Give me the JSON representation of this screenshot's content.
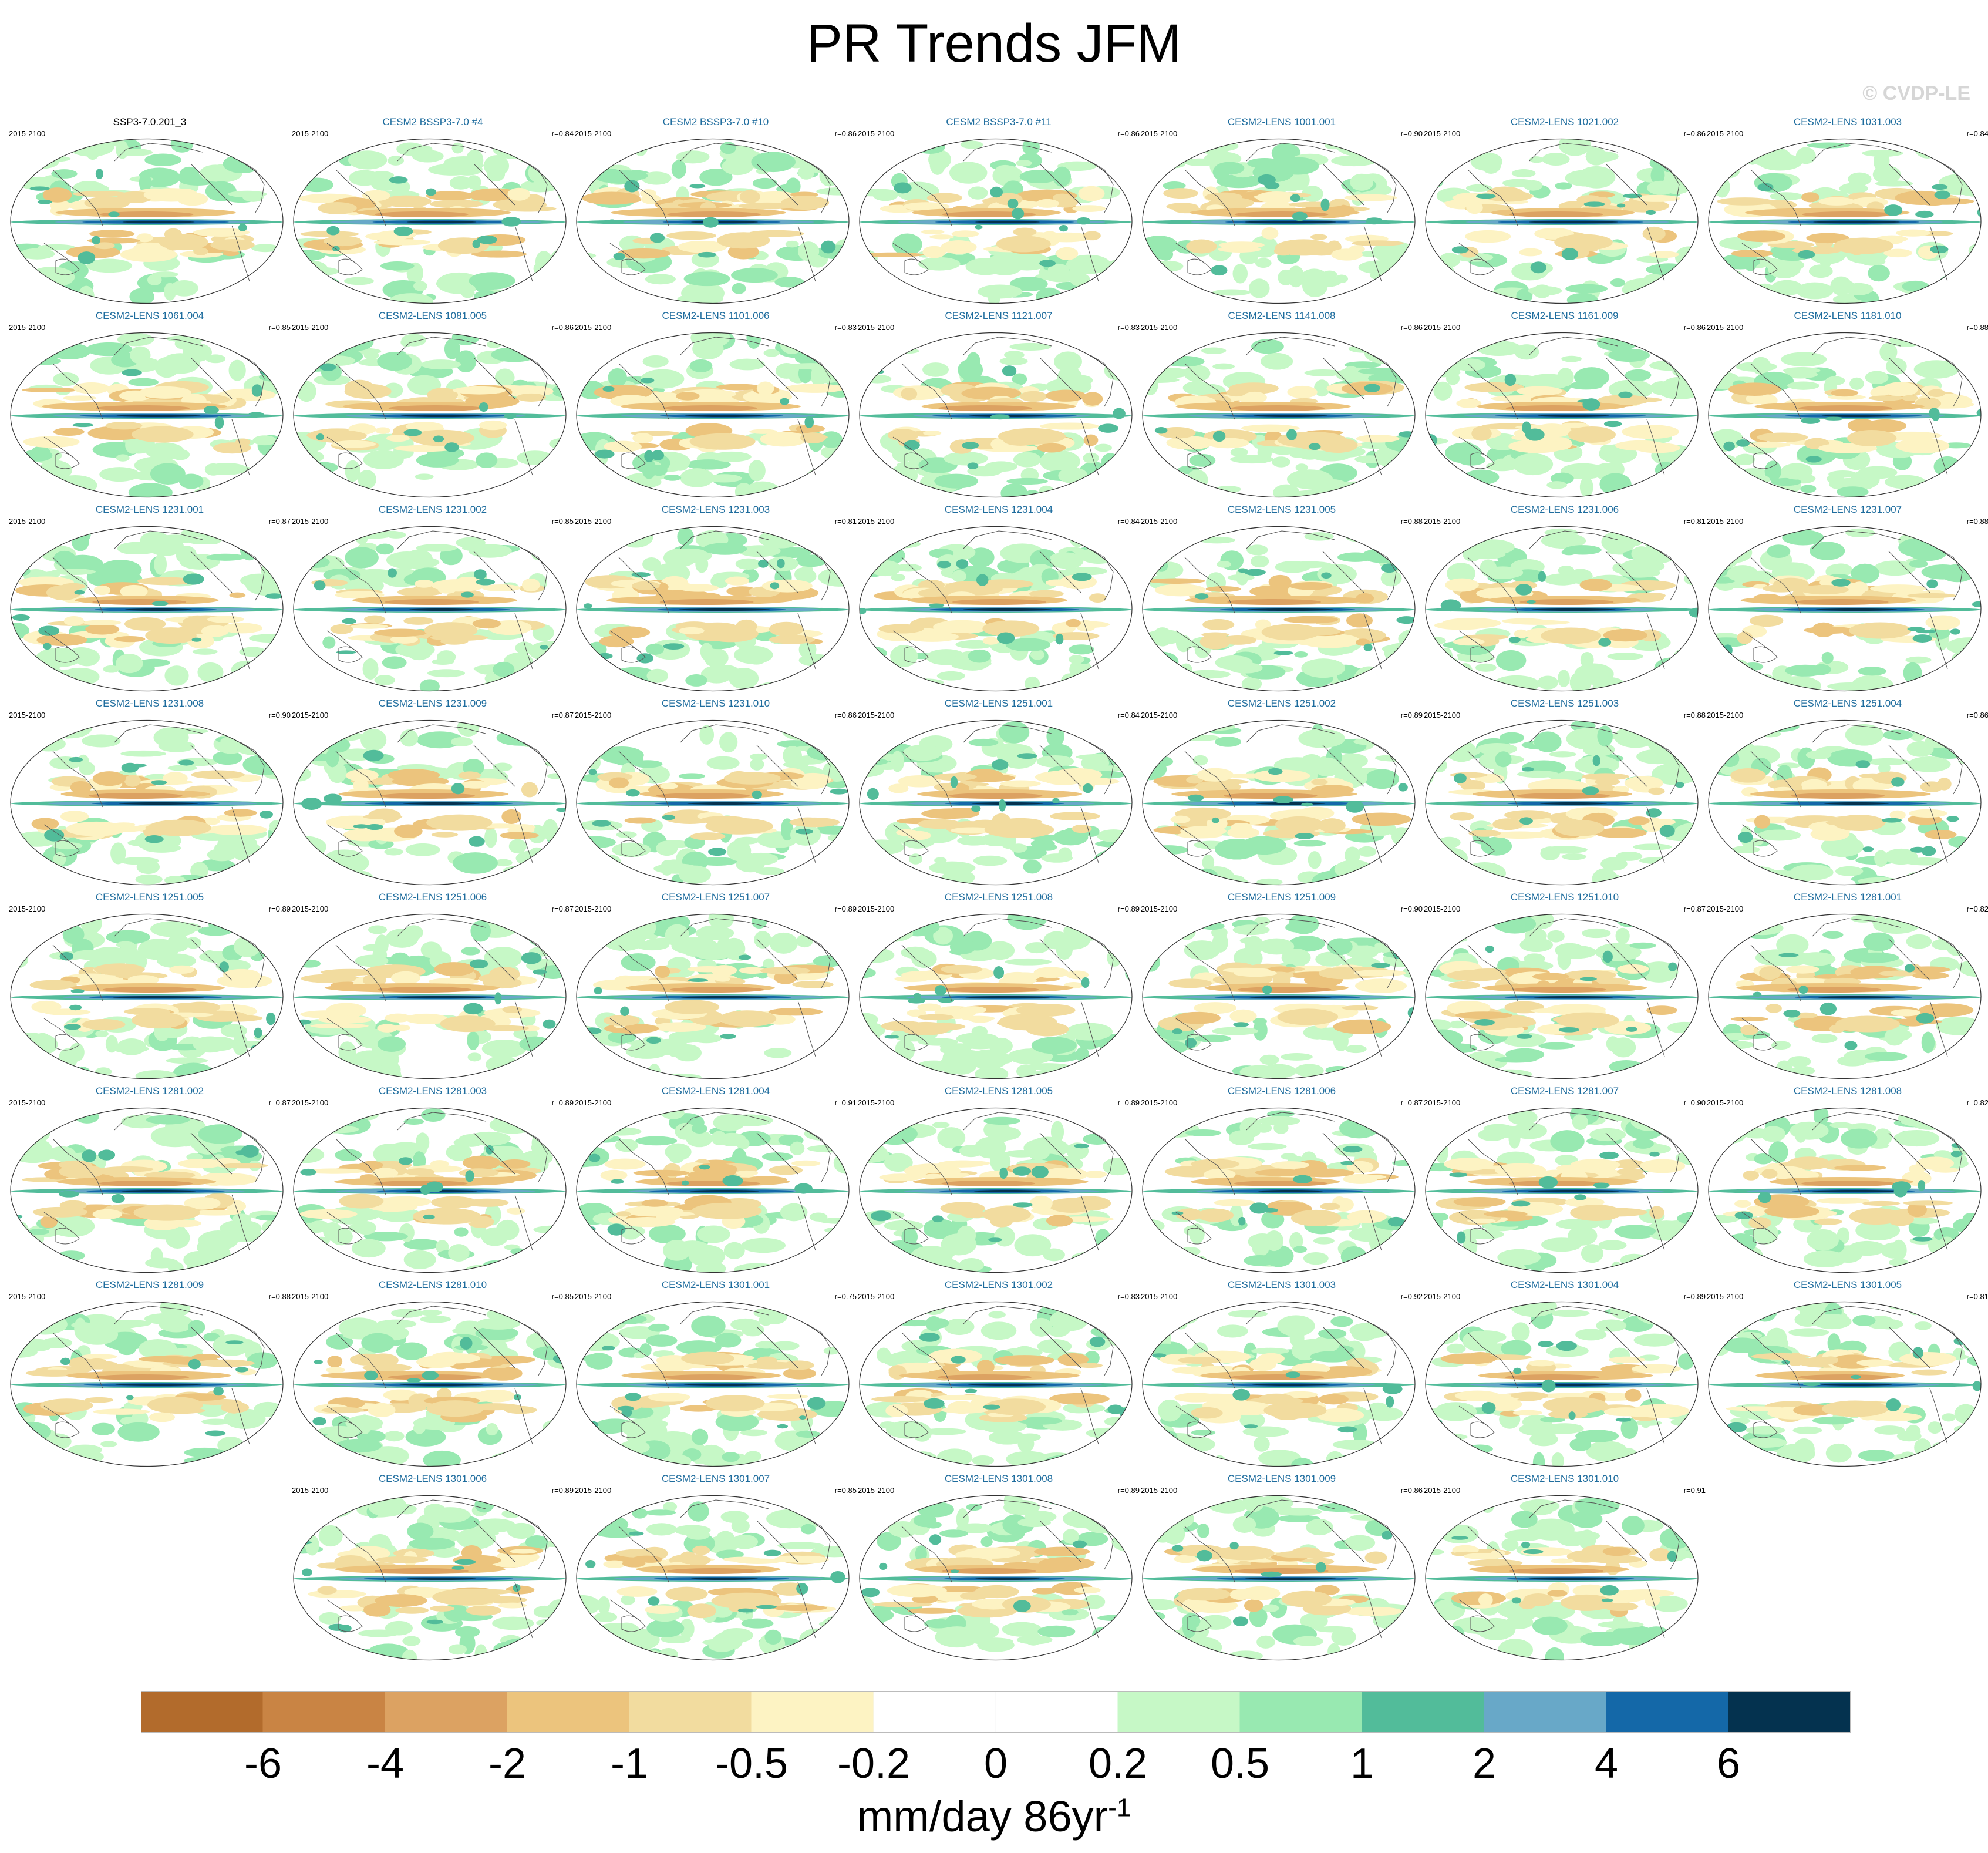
{
  "title": "PR Trends JFM",
  "watermark": "© CVDP-LE",
  "chart_data": {
    "type": "map-panels",
    "season": "JFM",
    "period": "2015-2100",
    "panels": [
      {
        "name": "SSP3-7.0.201_3",
        "period": "2015-2100",
        "r": "",
        "reference": true
      },
      {
        "name": "CESM2 BSSP3-7.0 #4",
        "period": "2015-2100",
        "r": "r=0.84"
      },
      {
        "name": "CESM2 BSSP3-7.0 #10",
        "period": "2015-2100",
        "r": "r=0.86"
      },
      {
        "name": "CESM2 BSSP3-7.0 #11",
        "period": "2015-2100",
        "r": "r=0.86"
      },
      {
        "name": "CESM2-LENS 1001.001",
        "period": "2015-2100",
        "r": "r=0.90"
      },
      {
        "name": "CESM2-LENS 1021.002",
        "period": "2015-2100",
        "r": "r=0.86"
      },
      {
        "name": "CESM2-LENS 1031.003",
        "period": "2015-2100",
        "r": "r=0.84"
      },
      {
        "name": "CESM2-LENS 1061.004",
        "period": "2015-2100",
        "r": "r=0.85"
      },
      {
        "name": "CESM2-LENS 1081.005",
        "period": "2015-2100",
        "r": "r=0.86"
      },
      {
        "name": "CESM2-LENS 1101.006",
        "period": "2015-2100",
        "r": "r=0.83"
      },
      {
        "name": "CESM2-LENS 1121.007",
        "period": "2015-2100",
        "r": "r=0.83"
      },
      {
        "name": "CESM2-LENS 1141.008",
        "period": "2015-2100",
        "r": "r=0.86"
      },
      {
        "name": "CESM2-LENS 1161.009",
        "period": "2015-2100",
        "r": "r=0.86"
      },
      {
        "name": "CESM2-LENS 1181.010",
        "period": "2015-2100",
        "r": "r=0.88"
      },
      {
        "name": "CESM2-LENS 1231.001",
        "period": "2015-2100",
        "r": "r=0.87"
      },
      {
        "name": "CESM2-LENS 1231.002",
        "period": "2015-2100",
        "r": "r=0.85"
      },
      {
        "name": "CESM2-LENS 1231.003",
        "period": "2015-2100",
        "r": "r=0.81"
      },
      {
        "name": "CESM2-LENS 1231.004",
        "period": "2015-2100",
        "r": "r=0.84"
      },
      {
        "name": "CESM2-LENS 1231.005",
        "period": "2015-2100",
        "r": "r=0.88"
      },
      {
        "name": "CESM2-LENS 1231.006",
        "period": "2015-2100",
        "r": "r=0.81"
      },
      {
        "name": "CESM2-LENS 1231.007",
        "period": "2015-2100",
        "r": "r=0.88"
      },
      {
        "name": "CESM2-LENS 1231.008",
        "period": "2015-2100",
        "r": "r=0.90"
      },
      {
        "name": "CESM2-LENS 1231.009",
        "period": "2015-2100",
        "r": "r=0.87"
      },
      {
        "name": "CESM2-LENS 1231.010",
        "period": "2015-2100",
        "r": "r=0.86"
      },
      {
        "name": "CESM2-LENS 1251.001",
        "period": "2015-2100",
        "r": "r=0.84"
      },
      {
        "name": "CESM2-LENS 1251.002",
        "period": "2015-2100",
        "r": "r=0.89"
      },
      {
        "name": "CESM2-LENS 1251.003",
        "period": "2015-2100",
        "r": "r=0.88"
      },
      {
        "name": "CESM2-LENS 1251.004",
        "period": "2015-2100",
        "r": "r=0.86"
      },
      {
        "name": "CESM2-LENS 1251.005",
        "period": "2015-2100",
        "r": "r=0.89"
      },
      {
        "name": "CESM2-LENS 1251.006",
        "period": "2015-2100",
        "r": "r=0.87"
      },
      {
        "name": "CESM2-LENS 1251.007",
        "period": "2015-2100",
        "r": "r=0.89"
      },
      {
        "name": "CESM2-LENS 1251.008",
        "period": "2015-2100",
        "r": "r=0.89"
      },
      {
        "name": "CESM2-LENS 1251.009",
        "period": "2015-2100",
        "r": "r=0.90"
      },
      {
        "name": "CESM2-LENS 1251.010",
        "period": "2015-2100",
        "r": "r=0.87"
      },
      {
        "name": "CESM2-LENS 1281.001",
        "period": "2015-2100",
        "r": "r=0.82"
      },
      {
        "name": "CESM2-LENS 1281.002",
        "period": "2015-2100",
        "r": "r=0.87"
      },
      {
        "name": "CESM2-LENS 1281.003",
        "period": "2015-2100",
        "r": "r=0.89"
      },
      {
        "name": "CESM2-LENS 1281.004",
        "period": "2015-2100",
        "r": "r=0.91"
      },
      {
        "name": "CESM2-LENS 1281.005",
        "period": "2015-2100",
        "r": "r=0.89"
      },
      {
        "name": "CESM2-LENS 1281.006",
        "period": "2015-2100",
        "r": "r=0.87"
      },
      {
        "name": "CESM2-LENS 1281.007",
        "period": "2015-2100",
        "r": "r=0.90"
      },
      {
        "name": "CESM2-LENS 1281.008",
        "period": "2015-2100",
        "r": "r=0.82"
      },
      {
        "name": "CESM2-LENS 1281.009",
        "period": "2015-2100",
        "r": "r=0.88"
      },
      {
        "name": "CESM2-LENS 1281.010",
        "period": "2015-2100",
        "r": "r=0.85"
      },
      {
        "name": "CESM2-LENS 1301.001",
        "period": "2015-2100",
        "r": "r=0.75"
      },
      {
        "name": "CESM2-LENS 1301.002",
        "period": "2015-2100",
        "r": "r=0.83"
      },
      {
        "name": "CESM2-LENS 1301.003",
        "period": "2015-2100",
        "r": "r=0.92"
      },
      {
        "name": "CESM2-LENS 1301.004",
        "period": "2015-2100",
        "r": "r=0.89"
      },
      {
        "name": "CESM2-LENS 1301.005",
        "period": "2015-2100",
        "r": "r=0.81"
      },
      {
        "name": "CESM2-LENS 1301.006",
        "period": "2015-2100",
        "r": "r=0.89"
      },
      {
        "name": "CESM2-LENS 1301.007",
        "period": "2015-2100",
        "r": "r=0.85"
      },
      {
        "name": "CESM2-LENS 1301.008",
        "period": "2015-2100",
        "r": "r=0.89"
      },
      {
        "name": "CESM2-LENS 1301.009",
        "period": "2015-2100",
        "r": "r=0.86"
      },
      {
        "name": "CESM2-LENS 1301.010",
        "period": "2015-2100",
        "r": "r=0.91"
      }
    ],
    "colorbar": {
      "units": "mm/day 86yr",
      "units_superscript": "-1",
      "labels": [
        "-6",
        "-4",
        "-2",
        "-1",
        "-0.5",
        "-0.2",
        "0",
        "0.2",
        "0.5",
        "1",
        "2",
        "4",
        "6"
      ],
      "colors": [
        "#b26b2c",
        "#c98444",
        "#dca262",
        "#ecc47d",
        "#f2dc9f",
        "#fdf3c3",
        "#ffffff",
        "#ffffff",
        "#c6f8c6",
        "#98e9b1",
        "#52bc9a",
        "#68a8c8",
        "#1468a8",
        "#04324f"
      ]
    },
    "colors": {
      "panel_title": "#1f6d9e",
      "reference_title": "#000000"
    }
  }
}
